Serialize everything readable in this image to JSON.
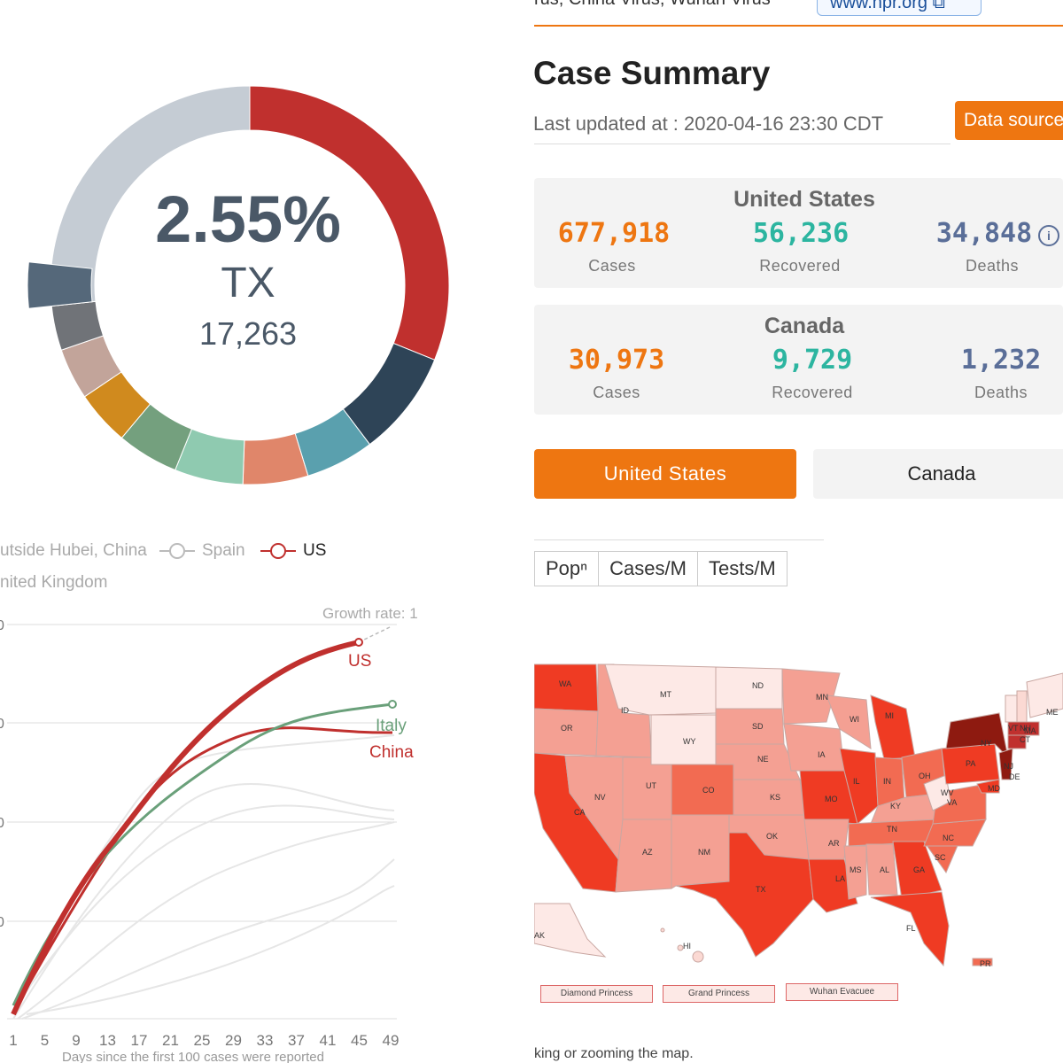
{
  "top": {
    "snippet": "rus, China Virus, Wuhan Virus",
    "link_text": "www.npr.org ⧉"
  },
  "summary": {
    "title": "Case Summary",
    "updated": "Last updated at : 2020-04-16 23:30 CDT",
    "data_source_label": "Data source",
    "cards": [
      {
        "country": "United States",
        "cases": "677,918",
        "recovered": "56,236",
        "deaths": "34,848"
      },
      {
        "country": "Canada",
        "cases": "30,973",
        "recovered": "9,729",
        "deaths": "1,232"
      }
    ],
    "labels": {
      "cases": "Cases",
      "recovered": "Recovered",
      "deaths": "Deaths"
    },
    "info_icon": "i"
  },
  "country_buttons": {
    "us": "United States",
    "canada": "Canada"
  },
  "metric_tabs": [
    "Popⁿ",
    "Cases/M",
    "Tests/M"
  ],
  "map": {
    "legend": [
      "Diamond Princess",
      "Grand Princess",
      "Wuhan Evacuee"
    ],
    "caption": "king or zooming the map.",
    "state_labels": [
      "WA",
      "OR",
      "CA",
      "NV",
      "ID",
      "MT",
      "WY",
      "UT",
      "AZ",
      "CO",
      "NM",
      "ND",
      "SD",
      "NE",
      "KS",
      "OK",
      "TX",
      "MN",
      "IA",
      "MO",
      "AR",
      "LA",
      "WI",
      "IL",
      "MI",
      "IN",
      "OH",
      "KY",
      "TN",
      "MS",
      "AL",
      "GA",
      "FL",
      "SC",
      "NC",
      "VA",
      "WV",
      "PA",
      "NY",
      "VT",
      "NH",
      "ME",
      "MA",
      "CT",
      "NJ",
      "DE",
      "MD",
      "HI",
      "AK",
      "PR"
    ],
    "colors": {
      "light": "#fbd9d3",
      "mid": "#f4a093",
      "strong": "#ef3b23",
      "dark": "#8e1a10"
    }
  },
  "donut": {
    "percent": "2.55%",
    "state": "TX",
    "count": "17,263",
    "colors": {
      "highlight": "#c0302e",
      "rest": "#c5ccd4"
    }
  },
  "growth": {
    "legend": {
      "hubei": "utside Hubei, China",
      "spain": "Spain",
      "us": "US",
      "uk": "nited Kingdom"
    },
    "growth_rate": "Growth rate: 1",
    "y_ticks": [
      "0",
      "0",
      "0",
      "0"
    ],
    "x_ticks": [
      "1",
      "5",
      "9",
      "13",
      "17",
      "21",
      "25",
      "29",
      "33",
      "37",
      "41",
      "45",
      "49"
    ],
    "x_label": "Days since the first 100 cases were reported",
    "series_labels": {
      "us": "US",
      "italy": "Italy",
      "china": "China"
    },
    "colors": {
      "us": "#c0302e",
      "italy": "#6aa07a",
      "china": "#c0302e",
      "other": "#e6e6e6"
    }
  }
}
